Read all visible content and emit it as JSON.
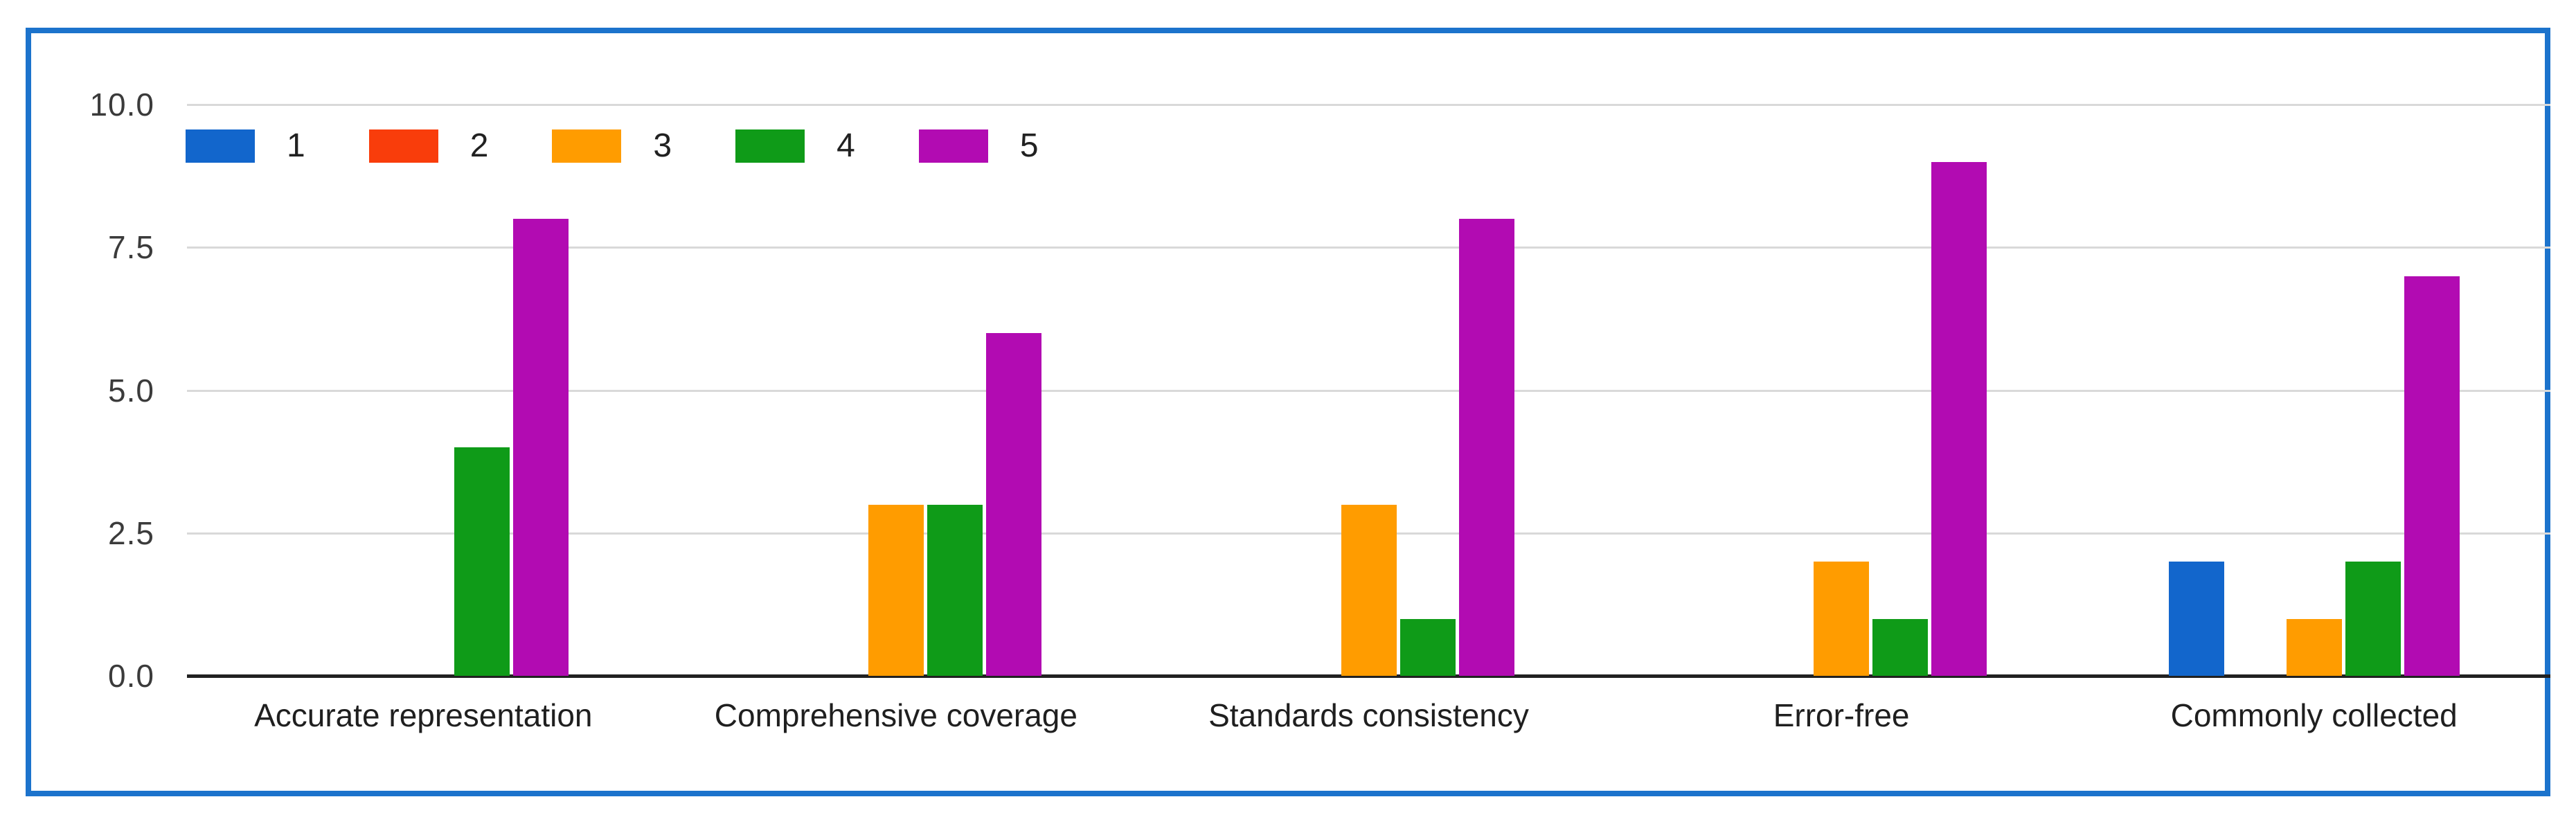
{
  "chart_data": {
    "type": "bar",
    "title": "",
    "xlabel": "",
    "ylabel": "",
    "ylim": [
      0,
      10
    ],
    "grid": true,
    "legend_position": "top-left",
    "yticks": [
      {
        "value": 10,
        "label": "10.0"
      },
      {
        "value": 7.5,
        "label": "7.5"
      },
      {
        "value": 5,
        "label": "5.0"
      },
      {
        "value": 2.5,
        "label": "2.5"
      },
      {
        "value": 0,
        "label": "0.0"
      }
    ],
    "categories": [
      "Accurate representation",
      "Comprehensive coverage",
      "Standards consistency",
      "Error-free",
      "Commonly collected"
    ],
    "series": [
      {
        "name": "1",
        "color": "#1266cc",
        "values": [
          0,
          0,
          0,
          0,
          2
        ]
      },
      {
        "name": "2",
        "color": "#f93d0b",
        "values": [
          0,
          0,
          0,
          0,
          0
        ]
      },
      {
        "name": "3",
        "color": "#ff9c00",
        "values": [
          0,
          3,
          3,
          2,
          1
        ]
      },
      {
        "name": "4",
        "color": "#0f9b18",
        "values": [
          4,
          3,
          1,
          1,
          2
        ]
      },
      {
        "name": "5",
        "color": "#b20bb2",
        "values": [
          8,
          6,
          8,
          9,
          7
        ]
      }
    ]
  },
  "frame": {
    "border_color": "#1c73cc",
    "gridline_color": "#d9d9d9",
    "baseline_color": "#212121",
    "background": "#ffffff"
  }
}
